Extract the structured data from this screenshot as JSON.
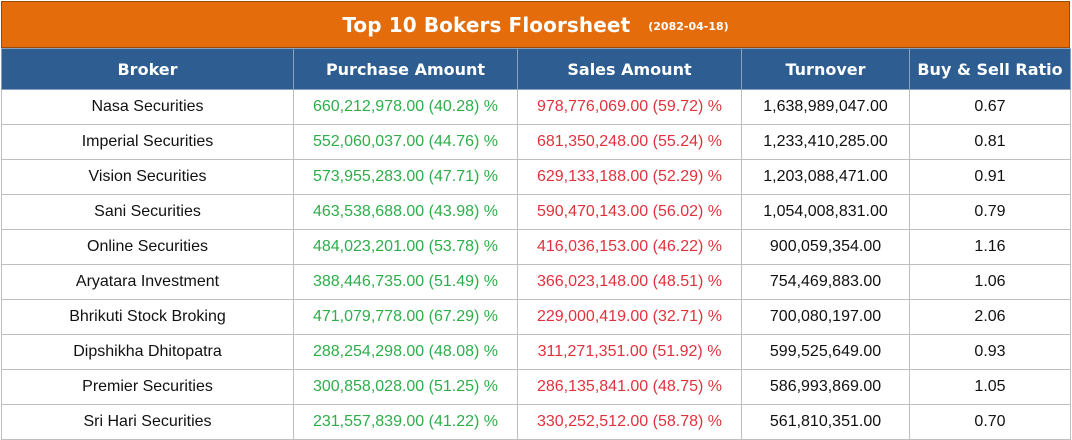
{
  "title": "Top 10 Bokers Floorsheet",
  "date": "(2082-04-18)",
  "columns": [
    "Broker",
    "Purchase Amount",
    "Sales Amount",
    "Turnover",
    "Buy & Sell Ratio"
  ],
  "colors": {
    "title_bg": "#e46c0a",
    "header_bg": "#2e5d91",
    "buy_text": "#2eae4a",
    "sell_text": "#e0323c"
  },
  "rows": [
    {
      "broker": "Nasa Securities",
      "purchase": "660,212,978.00 (40.28) %",
      "sales": "978,776,069.00 (59.72) %",
      "turnover": "1,638,989,047.00",
      "ratio": "0.67"
    },
    {
      "broker": "Imperial Securities",
      "purchase": "552,060,037.00 (44.76) %",
      "sales": "681,350,248.00 (55.24) %",
      "turnover": "1,233,410,285.00",
      "ratio": "0.81"
    },
    {
      "broker": "Vision Securities",
      "purchase": "573,955,283.00 (47.71) %",
      "sales": "629,133,188.00 (52.29) %",
      "turnover": "1,203,088,471.00",
      "ratio": "0.91"
    },
    {
      "broker": "Sani Securities",
      "purchase": "463,538,688.00 (43.98) %",
      "sales": "590,470,143.00 (56.02) %",
      "turnover": "1,054,008,831.00",
      "ratio": "0.79"
    },
    {
      "broker": "Online Securities",
      "purchase": "484,023,201.00 (53.78) %",
      "sales": "416,036,153.00 (46.22) %",
      "turnover": "900,059,354.00",
      "ratio": "1.16"
    },
    {
      "broker": "Aryatara Investment",
      "purchase": "388,446,735.00 (51.49) %",
      "sales": "366,023,148.00 (48.51) %",
      "turnover": "754,469,883.00",
      "ratio": "1.06"
    },
    {
      "broker": "Bhrikuti Stock Broking",
      "purchase": "471,079,778.00 (67.29) %",
      "sales": "229,000,419.00 (32.71) %",
      "turnover": "700,080,197.00",
      "ratio": "2.06"
    },
    {
      "broker": "Dipshikha Dhitopatra",
      "purchase": "288,254,298.00 (48.08) %",
      "sales": "311,271,351.00 (51.92) %",
      "turnover": "599,525,649.00",
      "ratio": "0.93"
    },
    {
      "broker": "Premier Securities",
      "purchase": "300,858,028.00 (51.25) %",
      "sales": "286,135,841.00 (48.75) %",
      "turnover": "586,993,869.00",
      "ratio": "1.05"
    },
    {
      "broker": "Sri Hari Securities",
      "purchase": "231,557,839.00 (41.22) %",
      "sales": "330,252,512.00 (58.78) %",
      "turnover": "561,810,351.00",
      "ratio": "0.70"
    }
  ]
}
